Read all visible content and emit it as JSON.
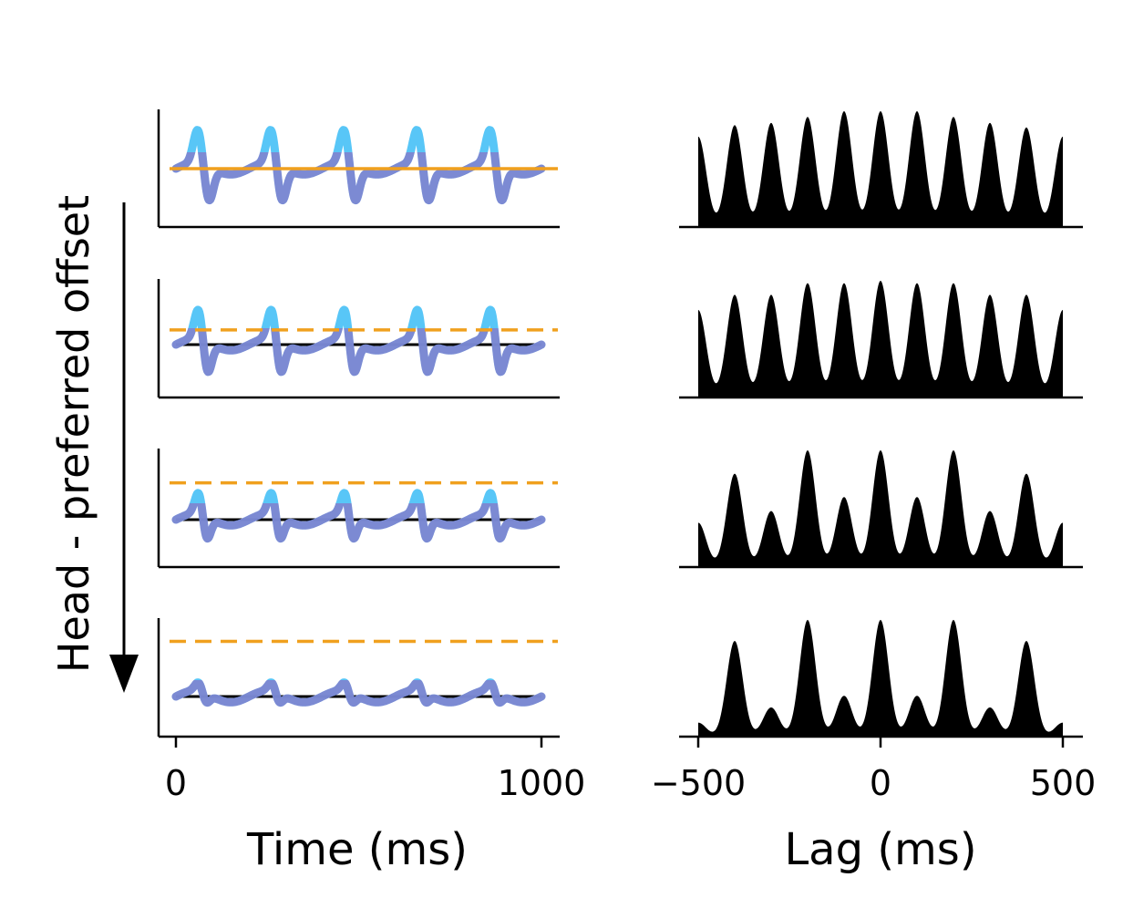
{
  "colors": {
    "background": "#ffffff",
    "axis": "#000000",
    "threshold": "#f0a01e",
    "baseline": "#000000",
    "trace_low": "#9b59b6",
    "trace_high": "#4fc3f7",
    "autocorr_fill": "#000000"
  },
  "figure": {
    "side_label": "Head - preferred offset",
    "arrow_icon": "down-arrow-icon"
  },
  "chart_data": [
    {
      "type": "line",
      "xlabel": "Time (ms)",
      "ylabel": "",
      "xlim": [
        0,
        1000
      ],
      "xticks": [
        0,
        1000
      ],
      "xtick_labels": [
        "0",
        "1000"
      ],
      "cycle_ms": 200,
      "panels": [
        {
          "offset": 0.0,
          "threshold": 0.0,
          "baseline": 0.0,
          "threshold_style": "solid",
          "baseline_style": "dotted"
        },
        {
          "offset": 0.33,
          "threshold": 0.12,
          "baseline": 0.0,
          "threshold_style": "dashed",
          "baseline_style": "solid"
        },
        {
          "offset": 0.66,
          "threshold": 0.3,
          "baseline": 0.0,
          "threshold_style": "dashed",
          "baseline_style": "solid"
        },
        {
          "offset": 1.0,
          "threshold": 0.45,
          "baseline": 0.0,
          "threshold_style": "dashed",
          "baseline_style": "solid"
        }
      ]
    },
    {
      "type": "area",
      "xlabel": "Lag (ms)",
      "ylabel": "",
      "xlim": [
        -500,
        500
      ],
      "xticks": [
        -500,
        0,
        500
      ],
      "xtick_labels": [
        "−500",
        "0",
        "500"
      ],
      "peak_lags": [
        -500,
        -400,
        -300,
        -200,
        -100,
        0,
        100,
        200,
        300,
        400,
        500
      ],
      "panels": [
        {
          "peak_heights": [
            0.78,
            0.88,
            0.9,
            0.95,
            1.0,
            1.0,
            1.0,
            0.95,
            0.9,
            0.86,
            0.78
          ]
        },
        {
          "peak_heights": [
            0.75,
            0.88,
            0.88,
            0.98,
            0.98,
            1.0,
            0.98,
            0.98,
            0.88,
            0.88,
            0.75
          ]
        },
        {
          "peak_heights": [
            0.38,
            0.8,
            0.48,
            1.0,
            0.6,
            1.0,
            0.6,
            1.0,
            0.48,
            0.8,
            0.38
          ]
        },
        {
          "peak_heights": [
            0.12,
            0.82,
            0.25,
            1.0,
            0.35,
            1.0,
            0.35,
            1.0,
            0.25,
            0.82,
            0.12
          ]
        }
      ]
    }
  ]
}
